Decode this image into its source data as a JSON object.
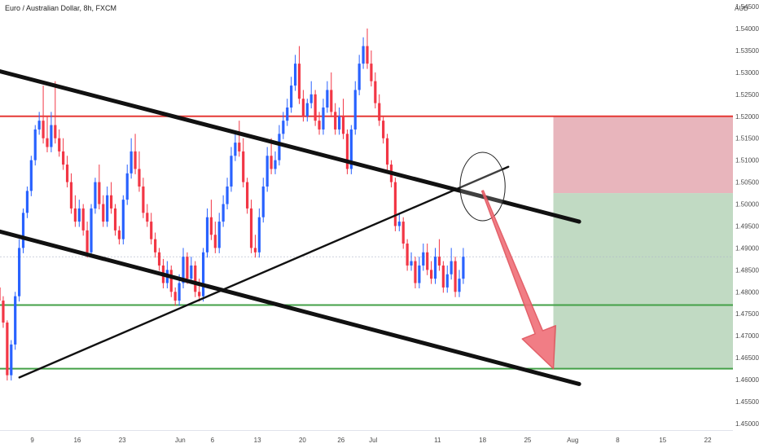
{
  "chart_data": {
    "type": "candlestick",
    "title": "Euro / Australian Dollar, 8h, FXCM",
    "currency_label": "AUD",
    "y_axis": {
      "range": [
        1.4485,
        1.5465
      ],
      "ticks": [
        "1.54500",
        "1.54000",
        "1.53500",
        "1.53000",
        "1.52500",
        "1.52000",
        "1.51500",
        "1.51000",
        "1.50500",
        "1.50000",
        "1.49500",
        "1.49000",
        "1.48500",
        "1.48000",
        "1.47500",
        "1.47000",
        "1.46500",
        "1.46000",
        "1.45500",
        "1.45000"
      ],
      "position": "right"
    },
    "x_axis": {
      "ticks": [
        "9",
        "16",
        "23",
        "Jun",
        "6",
        "13",
        "20",
        "26",
        "Jul",
        "11",
        "18",
        "25",
        "Aug",
        "8",
        "15",
        "22"
      ]
    },
    "grid": false,
    "colors": {
      "up": "#2962ff",
      "down": "#f23645",
      "resistance": "#e53935",
      "support": "#43a047",
      "trendline": "#111111",
      "arrow": "#f07078",
      "stop_zone": "#e4a8b0",
      "target_zone": "#b6d4b8"
    },
    "levels": [
      {
        "type": "resistance",
        "price": 1.52
      },
      {
        "type": "support",
        "price": 1.477
      },
      {
        "type": "support",
        "price": 1.4625
      }
    ],
    "trendlines": [
      {
        "from": [
          "May 2",
          1.531
        ],
        "to": [
          "Aug 2",
          1.496
        ]
      },
      {
        "from": [
          "May 2",
          1.4945
        ],
        "to": [
          "Aug 2",
          1.459
        ]
      },
      {
        "from": [
          "May 7",
          1.4605
        ],
        "to": [
          "Jul 22",
          1.5085
        ]
      }
    ],
    "ellipse": {
      "center": [
        "Jul 18",
        1.504
      ],
      "radius_x_days": 3.5,
      "radius_y": 0.0078
    },
    "arrow": {
      "from": [
        "Jul 18",
        1.503
      ],
      "to": [
        "Jul 29",
        1.4625
      ]
    },
    "zones": [
      {
        "name": "stop",
        "x_from": "Jul 29",
        "price_from": 1.5025,
        "price_to": 1.52
      },
      {
        "name": "target",
        "x_from": "Jul 29",
        "price_from": 1.4625,
        "price_to": 1.5025
      }
    ],
    "series": [
      {
        "values": [
          {
            "o": 1.4945,
            "h": 1.496,
            "c": 1.4905
          },
          {
            "o": 1.4905,
            "h": 1.491,
            "c": 1.486
          },
          {
            "o": 1.486,
            "h": 1.4865,
            "c": 1.481
          },
          {
            "o": 1.481,
            "h": 1.4825,
            "c": 1.478
          },
          {
            "o": 1.478,
            "h": 1.479,
            "c": 1.473
          },
          {
            "o": 1.473,
            "h": 1.4735,
            "c": 1.461
          },
          {
            "o": 1.461,
            "h": 1.469,
            "c": 1.468
          },
          {
            "o": 1.468,
            "h": 1.48,
            "c": 1.479
          },
          {
            "o": 1.479,
            "h": 1.492,
            "c": 1.49
          },
          {
            "o": 1.49,
            "h": 1.499,
            "c": 1.498
          },
          {
            "o": 1.498,
            "h": 1.504,
            "c": 1.503
          },
          {
            "o": 1.503,
            "h": 1.511,
            "c": 1.51
          },
          {
            "o": 1.51,
            "h": 1.518,
            "c": 1.517
          },
          {
            "o": 1.517,
            "h": 1.521,
            "c": 1.519
          },
          {
            "o": 1.519,
            "h": 1.527,
            "c": 1.515
          },
          {
            "o": 1.515,
            "h": 1.52,
            "c": 1.513
          },
          {
            "o": 1.513,
            "h": 1.521,
            "c": 1.518
          },
          {
            "o": 1.518,
            "h": 1.528,
            "c": 1.515
          },
          {
            "o": 1.515,
            "h": 1.517,
            "c": 1.512
          },
          {
            "o": 1.512,
            "h": 1.515,
            "c": 1.509
          },
          {
            "o": 1.509,
            "h": 1.511,
            "c": 1.505
          },
          {
            "o": 1.505,
            "h": 1.507,
            "c": 1.499
          },
          {
            "o": 1.499,
            "h": 1.502,
            "c": 1.496
          },
          {
            "o": 1.496,
            "h": 1.501,
            "c": 1.499
          },
          {
            "o": 1.499,
            "h": 1.5,
            "c": 1.494
          },
          {
            "o": 1.494,
            "h": 1.496,
            "c": 1.489
          },
          {
            "o": 1.489,
            "h": 1.5,
            "c": 1.499
          },
          {
            "o": 1.499,
            "h": 1.506,
            "c": 1.505
          },
          {
            "o": 1.505,
            "h": 1.509,
            "c": 1.5
          },
          {
            "o": 1.5,
            "h": 1.502,
            "c": 1.496
          },
          {
            "o": 1.496,
            "h": 1.504,
            "c": 1.502
          },
          {
            "o": 1.502,
            "h": 1.505,
            "c": 1.499
          },
          {
            "o": 1.499,
            "h": 1.5,
            "c": 1.494
          },
          {
            "o": 1.494,
            "h": 1.495,
            "c": 1.492
          },
          {
            "o": 1.492,
            "h": 1.502,
            "c": 1.501
          },
          {
            "o": 1.501,
            "h": 1.509,
            "c": 1.507
          },
          {
            "o": 1.507,
            "h": 1.515,
            "c": 1.512
          },
          {
            "o": 1.512,
            "h": 1.516,
            "c": 1.508
          },
          {
            "o": 1.508,
            "h": 1.512,
            "c": 1.504
          },
          {
            "o": 1.504,
            "h": 1.506,
            "c": 1.498
          },
          {
            "o": 1.498,
            "h": 1.5,
            "c": 1.496
          },
          {
            "o": 1.496,
            "h": 1.498,
            "c": 1.492
          },
          {
            "o": 1.492,
            "h": 1.4935,
            "c": 1.489
          },
          {
            "o": 1.489,
            "h": 1.49,
            "c": 1.486
          },
          {
            "o": 1.486,
            "h": 1.4875,
            "c": 1.482
          },
          {
            "o": 1.482,
            "h": 1.487,
            "c": 1.485
          },
          {
            "o": 1.485,
            "h": 1.486,
            "c": 1.48
          },
          {
            "o": 1.48,
            "h": 1.481,
            "c": 1.478
          },
          {
            "o": 1.478,
            "h": 1.484,
            "c": 1.482
          },
          {
            "o": 1.482,
            "h": 1.49,
            "c": 1.488
          },
          {
            "o": 1.488,
            "h": 1.489,
            "c": 1.483
          },
          {
            "o": 1.483,
            "h": 1.488,
            "c": 1.486
          },
          {
            "o": 1.486,
            "h": 1.487,
            "c": 1.48
          },
          {
            "o": 1.48,
            "h": 1.483,
            "c": 1.479
          },
          {
            "o": 1.479,
            "h": 1.49,
            "c": 1.489
          },
          {
            "o": 1.489,
            "h": 1.499,
            "c": 1.497
          },
          {
            "o": 1.497,
            "h": 1.501,
            "c": 1.493
          },
          {
            "o": 1.493,
            "h": 1.496,
            "c": 1.49
          },
          {
            "o": 1.49,
            "h": 1.498,
            "c": 1.496
          },
          {
            "o": 1.496,
            "h": 1.502,
            "c": 1.5
          },
          {
            "o": 1.5,
            "h": 1.506,
            "c": 1.504
          },
          {
            "o": 1.504,
            "h": 1.513,
            "c": 1.511
          },
          {
            "o": 1.511,
            "h": 1.516,
            "c": 1.514
          },
          {
            "o": 1.514,
            "h": 1.519,
            "c": 1.512
          },
          {
            "o": 1.512,
            "h": 1.515,
            "c": 1.505
          },
          {
            "o": 1.505,
            "h": 1.506,
            "c": 1.499
          },
          {
            "o": 1.499,
            "h": 1.501,
            "c": 1.49
          },
          {
            "o": 1.49,
            "h": 1.493,
            "c": 1.489
          },
          {
            "o": 1.489,
            "h": 1.499,
            "c": 1.497
          },
          {
            "o": 1.497,
            "h": 1.506,
            "c": 1.504
          },
          {
            "o": 1.504,
            "h": 1.513,
            "c": 1.511
          },
          {
            "o": 1.511,
            "h": 1.515,
            "c": 1.508
          },
          {
            "o": 1.508,
            "h": 1.512,
            "c": 1.51
          },
          {
            "o": 1.51,
            "h": 1.518,
            "c": 1.516
          },
          {
            "o": 1.516,
            "h": 1.521,
            "c": 1.519
          },
          {
            "o": 1.519,
            "h": 1.524,
            "c": 1.522
          },
          {
            "o": 1.522,
            "h": 1.529,
            "c": 1.527
          },
          {
            "o": 1.527,
            "h": 1.534,
            "c": 1.532
          },
          {
            "o": 1.532,
            "h": 1.536,
            "c": 1.524
          },
          {
            "o": 1.524,
            "h": 1.526,
            "c": 1.52
          },
          {
            "o": 1.52,
            "h": 1.524,
            "c": 1.523
          },
          {
            "o": 1.523,
            "h": 1.528,
            "c": 1.525
          },
          {
            "o": 1.525,
            "h": 1.526,
            "c": 1.519
          },
          {
            "o": 1.519,
            "h": 1.521,
            "c": 1.517
          },
          {
            "o": 1.517,
            "h": 1.524,
            "c": 1.522
          },
          {
            "o": 1.522,
            "h": 1.528,
            "c": 1.526
          },
          {
            "o": 1.526,
            "h": 1.53,
            "c": 1.521
          },
          {
            "o": 1.521,
            "h": 1.523,
            "c": 1.517
          },
          {
            "o": 1.517,
            "h": 1.522,
            "c": 1.52
          },
          {
            "o": 1.52,
            "h": 1.524,
            "c": 1.516
          },
          {
            "o": 1.516,
            "h": 1.517,
            "c": 1.508
          },
          {
            "o": 1.508,
            "h": 1.518,
            "c": 1.517
          },
          {
            "o": 1.517,
            "h": 1.528,
            "c": 1.526
          },
          {
            "o": 1.526,
            "h": 1.534,
            "c": 1.532
          },
          {
            "o": 1.532,
            "h": 1.538,
            "c": 1.536
          },
          {
            "o": 1.536,
            "h": 1.54,
            "c": 1.532
          },
          {
            "o": 1.532,
            "h": 1.535,
            "c": 1.528
          },
          {
            "o": 1.528,
            "h": 1.53,
            "c": 1.523
          },
          {
            "o": 1.523,
            "h": 1.525,
            "c": 1.519
          },
          {
            "o": 1.519,
            "h": 1.52,
            "c": 1.515
          },
          {
            "o": 1.515,
            "h": 1.516,
            "c": 1.509
          },
          {
            "o": 1.509,
            "h": 1.51,
            "c": 1.505
          },
          {
            "o": 1.505,
            "h": 1.506,
            "c": 1.495
          },
          {
            "o": 1.495,
            "h": 1.498,
            "c": 1.496
          },
          {
            "o": 1.496,
            "h": 1.497,
            "c": 1.491
          },
          {
            "o": 1.491,
            "h": 1.492,
            "c": 1.486
          },
          {
            "o": 1.486,
            "h": 1.489,
            "c": 1.487
          },
          {
            "o": 1.487,
            "h": 1.488,
            "c": 1.482
          },
          {
            "o": 1.482,
            "h": 1.488,
            "c": 1.486
          },
          {
            "o": 1.486,
            "h": 1.491,
            "c": 1.489
          },
          {
            "o": 1.489,
            "h": 1.491,
            "c": 1.485
          },
          {
            "o": 1.485,
            "h": 1.487,
            "c": 1.483
          },
          {
            "o": 1.483,
            "h": 1.49,
            "c": 1.488
          },
          {
            "o": 1.488,
            "h": 1.492,
            "c": 1.486
          },
          {
            "o": 1.486,
            "h": 1.487,
            "c": 1.481
          },
          {
            "o": 1.481,
            "h": 1.486,
            "c": 1.484
          },
          {
            "o": 1.484,
            "h": 1.49,
            "c": 1.487
          },
          {
            "o": 1.487,
            "h": 1.488,
            "c": 1.48
          },
          {
            "o": 1.48,
            "h": 1.485,
            "c": 1.483
          },
          {
            "o": 1.483,
            "h": 1.49,
            "c": 1.488
          }
        ]
      }
    ]
  }
}
